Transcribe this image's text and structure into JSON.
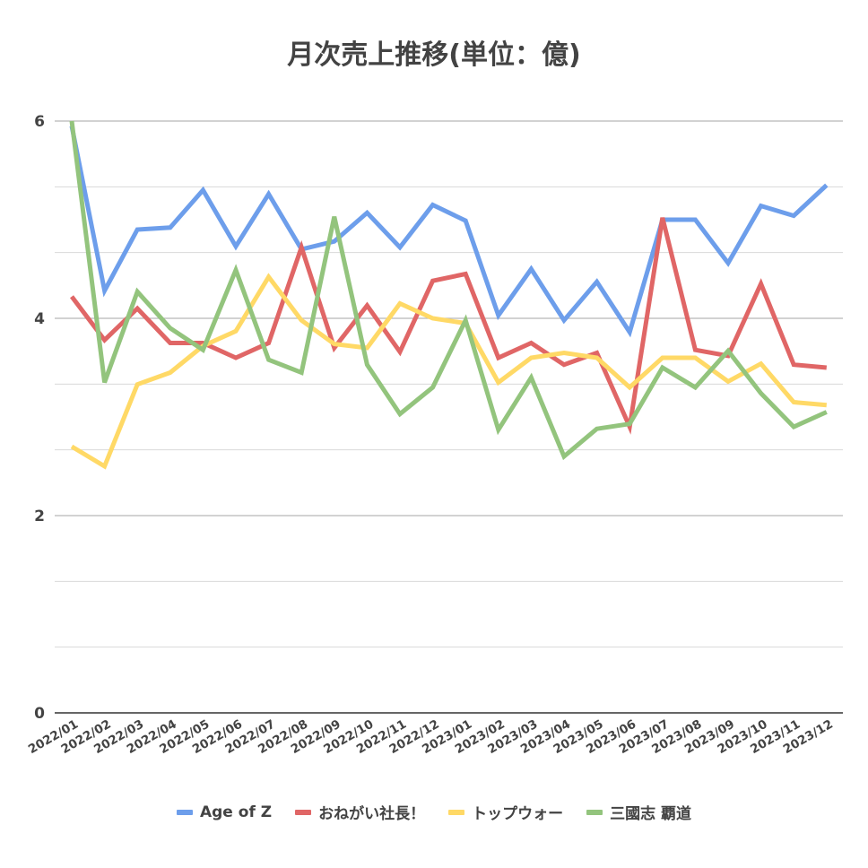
{
  "chart_data": {
    "type": "line",
    "title": "月次売上推移(単位：億)",
    "xlabel": "",
    "ylabel": "",
    "ylim": [
      0,
      6
    ],
    "yticks": [
      "0",
      "2",
      "4",
      "6"
    ],
    "grid": true,
    "legend_position": "bottom",
    "categories": [
      "2022/01",
      "2022/02",
      "2022/03",
      "2022/04",
      "2022/05",
      "2022/06",
      "2022/07",
      "2022/08",
      "2022/09",
      "2022/10",
      "2022/11",
      "2022/12",
      "2023/01",
      "2023/02",
      "2023/03",
      "2023/04",
      "2023/05",
      "2023/06",
      "2023/07",
      "2023/08",
      "2023/09",
      "2023/10",
      "2023/11",
      "2023/12"
    ],
    "series": [
      {
        "name": "Age of Z",
        "color": "#6d9eeb",
        "values": [
          5.95,
          4.28,
          4.9,
          4.92,
          5.3,
          4.73,
          5.26,
          4.7,
          4.78,
          5.07,
          4.72,
          5.15,
          4.99,
          4.03,
          4.5,
          3.98,
          4.37,
          3.86,
          5.0,
          5.0,
          4.56,
          5.14,
          5.04,
          5.35
        ]
      },
      {
        "name": "おねがい社長！",
        "color": "#e06666",
        "values": [
          4.22,
          3.78,
          4.1,
          3.75,
          3.75,
          3.6,
          3.75,
          4.72,
          3.7,
          4.13,
          3.66,
          4.38,
          4.45,
          3.6,
          3.75,
          3.53,
          3.65,
          2.9,
          5.02,
          3.68,
          3.62,
          4.35,
          3.53,
          3.5
        ]
      },
      {
        "name": "トップウォー",
        "color": "#ffd966",
        "values": [
          2.7,
          2.5,
          3.33,
          3.45,
          3.72,
          3.87,
          4.42,
          3.98,
          3.74,
          3.7,
          4.15,
          4.0,
          3.95,
          3.35,
          3.6,
          3.65,
          3.6,
          3.3,
          3.6,
          3.6,
          3.36,
          3.54,
          3.15,
          3.12
        ]
      },
      {
        "name": "三國志 覇道",
        "color": "#93c47d",
        "values": [
          6.0,
          3.35,
          4.27,
          3.9,
          3.68,
          4.49,
          3.58,
          3.45,
          5.03,
          3.53,
          3.03,
          3.3,
          3.98,
          2.87,
          3.4,
          2.6,
          2.88,
          2.93,
          3.5,
          3.3,
          3.67,
          3.24,
          2.9,
          3.05
        ]
      }
    ]
  }
}
